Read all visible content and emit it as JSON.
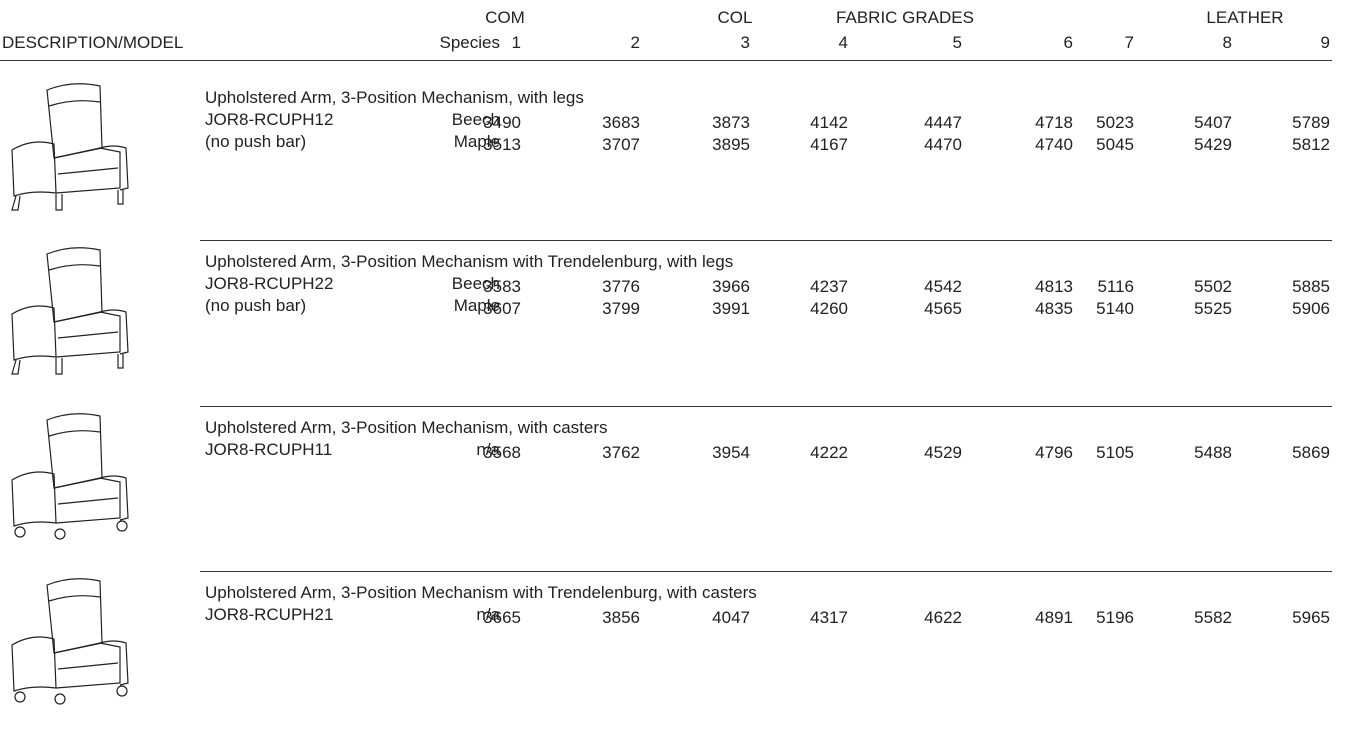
{
  "header": {
    "groups": [
      "COM",
      "COL",
      "FABRIC GRADES",
      "LEATHER"
    ],
    "columns": [
      "DESCRIPTION/MODEL",
      "Species",
      "1",
      "2",
      "3",
      "4",
      "5",
      "6",
      "7",
      "8",
      "9"
    ]
  },
  "products": [
    {
      "description": "Upholstered Arm, 3-Position Mechanism, with legs",
      "model": "JOR8-RCUPH12",
      "note": "(no push bar)",
      "rows": [
        {
          "species": "Beech",
          "prices": [
            3490,
            3683,
            3873,
            4142,
            4447,
            4718,
            5023,
            5407,
            5789
          ]
        },
        {
          "species": "Maple",
          "prices": [
            3513,
            3707,
            3895,
            4167,
            4470,
            4740,
            5045,
            5429,
            5812
          ]
        }
      ]
    },
    {
      "description": "Upholstered Arm, 3-Position Mechanism with Trendelenburg, with legs",
      "model": "JOR8-RCUPH22",
      "note": "(no push bar)",
      "rows": [
        {
          "species": "Beech",
          "prices": [
            3583,
            3776,
            3966,
            4237,
            4542,
            4813,
            5116,
            5502,
            5885
          ]
        },
        {
          "species": "Maple",
          "prices": [
            3607,
            3799,
            3991,
            4260,
            4565,
            4835,
            5140,
            5525,
            5906
          ]
        }
      ]
    },
    {
      "description": "Upholstered Arm, 3-Position Mechanism, with casters",
      "model": "JOR8-RCUPH11",
      "rows": [
        {
          "species": "n/a",
          "prices": [
            3568,
            3762,
            3954,
            4222,
            4529,
            4796,
            5105,
            5488,
            5869
          ]
        }
      ]
    },
    {
      "description": "Upholstered Arm, 3-Position Mechanism with Trendelenburg, with casters",
      "model": "JOR8-RCUPH21",
      "rows": [
        {
          "species": "n/a",
          "prices": [
            3665,
            3856,
            4047,
            4317,
            4622,
            4891,
            5196,
            5582,
            5965
          ]
        }
      ]
    }
  ]
}
